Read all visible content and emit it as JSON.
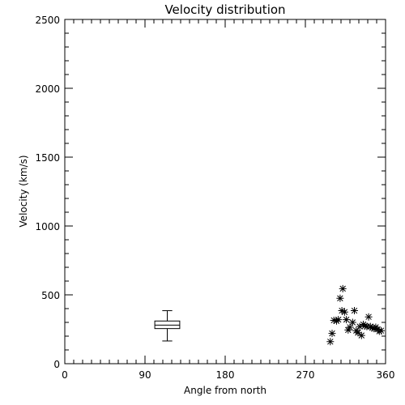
{
  "chart_data": {
    "type": "scatter",
    "title": "Velocity distribution",
    "xlabel": "Angle from north",
    "ylabel": "Velocity (km/s)",
    "xlim": [
      0,
      360
    ],
    "ylim": [
      0,
      2500
    ],
    "xticks": [
      0,
      90,
      180,
      270,
      360
    ],
    "xtick_labels": [
      "0",
      "90",
      "180",
      "270",
      "360"
    ],
    "yticks": [
      0,
      500,
      1000,
      1500,
      2000,
      2500
    ],
    "ytick_labels": [
      "0",
      "500",
      "1000",
      "1500",
      "2000",
      "2500"
    ],
    "marker": "asterisk",
    "grid": false,
    "boxplot": {
      "x": 115,
      "width": 28,
      "whisker_low": 165,
      "q1": 255,
      "median": 280,
      "q3": 310,
      "whisker_high": 385
    },
    "points": [
      {
        "x": 298,
        "y": 160
      },
      {
        "x": 300,
        "y": 220
      },
      {
        "x": 302,
        "y": 315
      },
      {
        "x": 305,
        "y": 310
      },
      {
        "x": 307,
        "y": 320
      },
      {
        "x": 309,
        "y": 475
      },
      {
        "x": 312,
        "y": 545
      },
      {
        "x": 311,
        "y": 385
      },
      {
        "x": 314,
        "y": 375
      },
      {
        "x": 316,
        "y": 320
      },
      {
        "x": 318,
        "y": 245
      },
      {
        "x": 320,
        "y": 265
      },
      {
        "x": 323,
        "y": 300
      },
      {
        "x": 325,
        "y": 385
      },
      {
        "x": 327,
        "y": 240
      },
      {
        "x": 329,
        "y": 225
      },
      {
        "x": 331,
        "y": 270
      },
      {
        "x": 333,
        "y": 205
      },
      {
        "x": 335,
        "y": 285
      },
      {
        "x": 337,
        "y": 275
      },
      {
        "x": 339,
        "y": 270
      },
      {
        "x": 341,
        "y": 340
      },
      {
        "x": 343,
        "y": 270
      },
      {
        "x": 345,
        "y": 260
      },
      {
        "x": 347,
        "y": 255
      },
      {
        "x": 349,
        "y": 265
      },
      {
        "x": 351,
        "y": 250
      },
      {
        "x": 353,
        "y": 235
      },
      {
        "x": 355,
        "y": 240
      }
    ]
  }
}
